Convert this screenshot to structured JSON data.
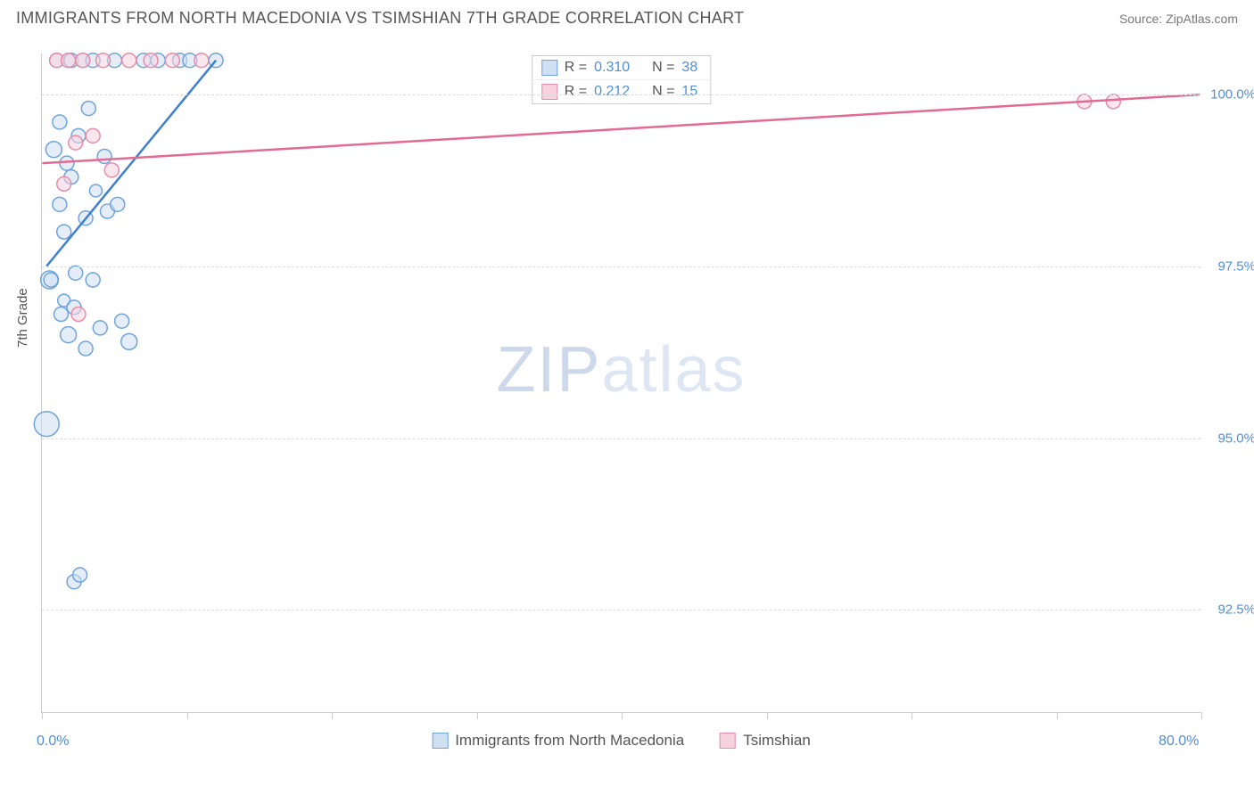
{
  "header": {
    "title": "IMMIGRANTS FROM NORTH MACEDONIA VS TSIMSHIAN 7TH GRADE CORRELATION CHART",
    "source": "Source: ZipAtlas.com"
  },
  "watermark": {
    "zip": "ZIP",
    "atlas": "atlas"
  },
  "chart": {
    "type": "scatter",
    "y_axis_title": "7th Grade",
    "background_color": "#ffffff",
    "grid_color": "#dddddd",
    "axis_color": "#cccccc",
    "xlim": [
      0,
      80
    ],
    "ylim": [
      91.0,
      100.6
    ],
    "x_ticks": [
      0,
      10,
      20,
      30,
      40,
      50,
      60,
      70,
      80
    ],
    "x_tick_labels": {
      "min": "0.0%",
      "max": "80.0%"
    },
    "x_label_color": "#4f8edb",
    "y_ticks": [
      {
        "v": 100.0,
        "label": "100.0%"
      },
      {
        "v": 97.5,
        "label": "97.5%"
      },
      {
        "v": 95.0,
        "label": "95.0%"
      },
      {
        "v": 92.5,
        "label": "92.5%"
      }
    ],
    "y_label_color": "#4f8edb",
    "series": [
      {
        "name": "Immigrants from North Macedonia",
        "fill": "#cfe0f3",
        "stroke": "#6fa3db",
        "line_color": "#3f7fd1",
        "line_width": 2.5,
        "marker_r_default": 8,
        "r_value": "0.310",
        "n_value": "38",
        "trend": {
          "x1": 0.3,
          "y1": 97.5,
          "x2": 12.0,
          "y2": 100.5
        },
        "points": [
          {
            "x": 0.3,
            "y": 95.2,
            "r": 14
          },
          {
            "x": 0.5,
            "y": 97.3,
            "r": 10
          },
          {
            "x": 0.6,
            "y": 97.3,
            "r": 8
          },
          {
            "x": 0.8,
            "y": 99.2,
            "r": 9
          },
          {
            "x": 1.0,
            "y": 100.5,
            "r": 8
          },
          {
            "x": 1.2,
            "y": 98.4,
            "r": 8
          },
          {
            "x": 1.2,
            "y": 99.6,
            "r": 8
          },
          {
            "x": 1.3,
            "y": 96.8,
            "r": 8
          },
          {
            "x": 1.5,
            "y": 98.0,
            "r": 8
          },
          {
            "x": 1.5,
            "y": 97.0,
            "r": 7
          },
          {
            "x": 1.7,
            "y": 99.0,
            "r": 8
          },
          {
            "x": 1.8,
            "y": 96.5,
            "r": 9
          },
          {
            "x": 2.0,
            "y": 100.5,
            "r": 8
          },
          {
            "x": 2.0,
            "y": 98.8,
            "r": 8
          },
          {
            "x": 2.2,
            "y": 96.9,
            "r": 8
          },
          {
            "x": 2.3,
            "y": 97.4,
            "r": 8
          },
          {
            "x": 2.5,
            "y": 99.4,
            "r": 8
          },
          {
            "x": 2.8,
            "y": 100.5,
            "r": 8
          },
          {
            "x": 3.0,
            "y": 98.2,
            "r": 8
          },
          {
            "x": 3.0,
            "y": 96.3,
            "r": 8
          },
          {
            "x": 3.2,
            "y": 99.8,
            "r": 8
          },
          {
            "x": 3.5,
            "y": 97.3,
            "r": 8
          },
          {
            "x": 3.5,
            "y": 100.5,
            "r": 8
          },
          {
            "x": 3.7,
            "y": 98.6,
            "r": 7
          },
          {
            "x": 4.0,
            "y": 96.6,
            "r": 8
          },
          {
            "x": 4.3,
            "y": 99.1,
            "r": 8
          },
          {
            "x": 4.5,
            "y": 98.3,
            "r": 8
          },
          {
            "x": 5.0,
            "y": 100.5,
            "r": 8
          },
          {
            "x": 5.2,
            "y": 98.4,
            "r": 8
          },
          {
            "x": 5.5,
            "y": 96.7,
            "r": 8
          },
          {
            "x": 6.0,
            "y": 96.4,
            "r": 9
          },
          {
            "x": 7.0,
            "y": 100.5,
            "r": 8
          },
          {
            "x": 8.0,
            "y": 100.5,
            "r": 8
          },
          {
            "x": 9.5,
            "y": 100.5,
            "r": 8
          },
          {
            "x": 10.2,
            "y": 100.5,
            "r": 8
          },
          {
            "x": 12.0,
            "y": 100.5,
            "r": 8
          },
          {
            "x": 2.2,
            "y": 92.9,
            "r": 8
          },
          {
            "x": 2.6,
            "y": 93.0,
            "r": 8
          }
        ]
      },
      {
        "name": "Tsimshian",
        "fill": "#f6d3de",
        "stroke": "#e88ba8",
        "line_color": "#e36a93",
        "line_width": 2.5,
        "marker_r_default": 8,
        "r_value": "0.212",
        "n_value": "15",
        "trend": {
          "x1": 0.0,
          "y1": 99.0,
          "x2": 80.0,
          "y2": 100.0
        },
        "points": [
          {
            "x": 1.0,
            "y": 100.5,
            "r": 8
          },
          {
            "x": 1.5,
            "y": 98.7,
            "r": 8
          },
          {
            "x": 1.8,
            "y": 100.5,
            "r": 8
          },
          {
            "x": 2.3,
            "y": 99.3,
            "r": 8
          },
          {
            "x": 2.5,
            "y": 96.8,
            "r": 8
          },
          {
            "x": 2.8,
            "y": 100.5,
            "r": 8
          },
          {
            "x": 3.5,
            "y": 99.4,
            "r": 8
          },
          {
            "x": 4.2,
            "y": 100.5,
            "r": 8
          },
          {
            "x": 4.8,
            "y": 98.9,
            "r": 8
          },
          {
            "x": 6.0,
            "y": 100.5,
            "r": 8
          },
          {
            "x": 7.5,
            "y": 100.5,
            "r": 8
          },
          {
            "x": 9.0,
            "y": 100.5,
            "r": 8
          },
          {
            "x": 11.0,
            "y": 100.5,
            "r": 8
          },
          {
            "x": 72.0,
            "y": 99.9,
            "r": 8
          },
          {
            "x": 74.0,
            "y": 99.9,
            "r": 8
          }
        ]
      }
    ]
  },
  "legend_stats": {
    "r_label": "R =",
    "n_label": "N ="
  }
}
